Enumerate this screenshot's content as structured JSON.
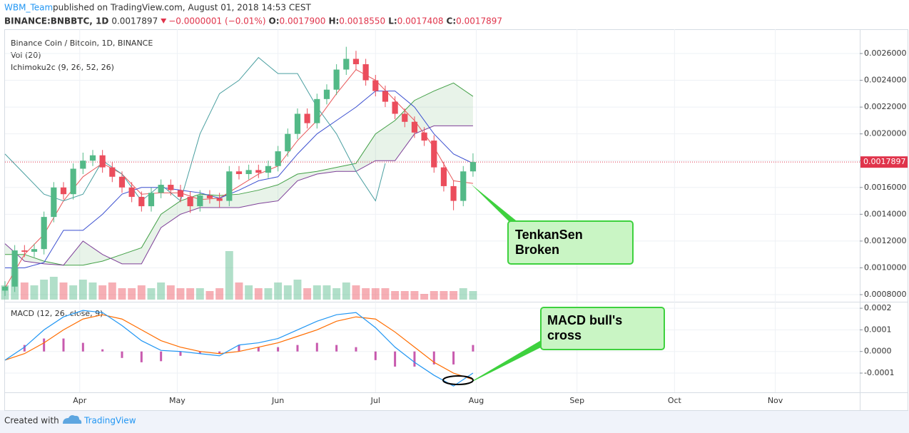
{
  "header": {
    "author": "WBM_Team",
    "published": "published on TradingView.com, August 01, 2018 14:53 CEST",
    "symbol": "BINANCE:BNBBTC, 1D",
    "price": "0.0017897",
    "change": "−0.0000001 (−0.01%)",
    "ohlc": [
      {
        "label": "O:",
        "value": "0.0017900"
      },
      {
        "label": "H:",
        "value": "0.0018550"
      },
      {
        "label": "L:",
        "value": "0.0017408"
      },
      {
        "label": "C:",
        "value": "0.0017897"
      }
    ]
  },
  "footer": {
    "created": "Created with",
    "brand": "TradingView"
  },
  "chart_data": [
    {
      "type": "candlestick",
      "title": "Binance Coin / Bitcoin, 1D, BINANCE",
      "indicators": [
        "Vol (20)",
        "Ichimoku2c (9, 26, 52, 26)"
      ],
      "x": [
        0,
        3,
        6,
        9,
        12,
        15,
        18,
        21,
        24,
        27,
        30,
        33,
        36,
        39,
        42,
        45,
        48,
        51,
        54,
        57,
        60,
        63,
        66,
        69,
        72,
        75,
        78,
        81,
        84,
        87,
        90,
        93,
        96,
        99,
        102,
        105,
        108,
        111,
        114,
        117,
        120,
        123,
        126,
        129,
        132,
        135,
        138,
        141,
        144
      ],
      "open": [
        0.00083,
        0.00086,
        0.00113,
        0.00112,
        0.00114,
        0.00138,
        0.0016,
        0.00155,
        0.00174,
        0.0018,
        0.00184,
        0.00175,
        0.00168,
        0.0016,
        0.00153,
        0.00146,
        0.00156,
        0.00162,
        0.00158,
        0.00153,
        0.00146,
        0.00154,
        0.00152,
        0.0015,
        0.00172,
        0.0017,
        0.00173,
        0.00171,
        0.00176,
        0.00187,
        0.002,
        0.00215,
        0.00208,
        0.00226,
        0.00233,
        0.00248,
        0.00256,
        0.00252,
        0.0024,
        0.00232,
        0.00224,
        0.00215,
        0.00209,
        0.00201,
        0.00195,
        0.00175,
        0.00161,
        0.0015,
        0.00172
      ],
      "high": [
        0.0009,
        0.00117,
        0.00117,
        0.00118,
        0.00142,
        0.00164,
        0.00164,
        0.00178,
        0.00186,
        0.00188,
        0.00188,
        0.00179,
        0.00172,
        0.00164,
        0.00157,
        0.0016,
        0.00166,
        0.00166,
        0.00162,
        0.00157,
        0.00158,
        0.00158,
        0.00156,
        0.00176,
        0.00176,
        0.00177,
        0.00177,
        0.0018,
        0.00191,
        0.00204,
        0.00219,
        0.00219,
        0.0023,
        0.00237,
        0.00252,
        0.00265,
        0.00262,
        0.00256,
        0.00244,
        0.00236,
        0.00228,
        0.00219,
        0.00213,
        0.00205,
        0.00199,
        0.00179,
        0.00165,
        0.00176,
        0.001855
      ],
      "low": [
        0.00079,
        0.00082,
        0.00108,
        0.00108,
        0.0011,
        0.00134,
        0.00151,
        0.00151,
        0.0017,
        0.00176,
        0.00171,
        0.00164,
        0.00156,
        0.00149,
        0.00142,
        0.00142,
        0.00152,
        0.00154,
        0.00149,
        0.00141,
        0.00142,
        0.00148,
        0.00145,
        0.00146,
        0.00166,
        0.00166,
        0.00167,
        0.00167,
        0.00172,
        0.00183,
        0.00196,
        0.00204,
        0.00204,
        0.00222,
        0.00229,
        0.00244,
        0.00248,
        0.00236,
        0.00228,
        0.0022,
        0.00211,
        0.00205,
        0.00197,
        0.00191,
        0.00171,
        0.00157,
        0.00143,
        0.00146,
        0.00168
      ],
      "close": [
        0.00086,
        0.00113,
        0.00112,
        0.00114,
        0.00138,
        0.0016,
        0.00155,
        0.00174,
        0.0018,
        0.00184,
        0.00175,
        0.00168,
        0.0016,
        0.00153,
        0.00146,
        0.00156,
        0.00162,
        0.00158,
        0.00153,
        0.00146,
        0.00154,
        0.00152,
        0.0015,
        0.00172,
        0.0017,
        0.00173,
        0.00171,
        0.00176,
        0.00187,
        0.002,
        0.00215,
        0.00208,
        0.00226,
        0.00233,
        0.00248,
        0.00256,
        0.00252,
        0.0024,
        0.00232,
        0.00224,
        0.00215,
        0.00209,
        0.00201,
        0.00195,
        0.00175,
        0.00161,
        0.0015,
        0.00172,
        0.0017897
      ],
      "up_color": "#53b987",
      "down_color": "#eb4d5c",
      "volume": [
        25,
        55,
        30,
        25,
        35,
        40,
        30,
        25,
        35,
        30,
        25,
        30,
        20,
        20,
        25,
        20,
        30,
        25,
        20,
        20,
        20,
        15,
        20,
        85,
        30,
        25,
        20,
        20,
        30,
        25,
        35,
        20,
        25,
        25,
        20,
        30,
        25,
        20,
        20,
        20,
        15,
        15,
        15,
        10,
        15,
        15,
        15,
        20,
        15
      ],
      "lines": [
        {
          "color": "#e8585a",
          "x": [
            0,
            6,
            12,
            18,
            24,
            30,
            36,
            42,
            48,
            54,
            60,
            66,
            72,
            78,
            84,
            90,
            96,
            102,
            108,
            114,
            120,
            126,
            132,
            138,
            144
          ],
          "values": [
            0.00085,
            0.0011,
            0.00125,
            0.0015,
            0.00168,
            0.00178,
            0.0017,
            0.00155,
            0.00156,
            0.00156,
            0.00151,
            0.00152,
            0.00161,
            0.0017,
            0.00176,
            0.00195,
            0.0021,
            0.0023,
            0.00248,
            0.0024,
            0.00225,
            0.0021,
            0.0019,
            0.00165,
            0.00163
          ]
        },
        {
          "color": "#3b4fd0",
          "x": [
            0,
            6,
            12,
            18,
            24,
            30,
            36,
            42,
            48,
            54,
            60,
            66,
            72,
            78,
            84,
            90,
            96,
            102,
            108,
            114,
            120,
            126,
            132,
            138,
            144
          ],
          "values": [
            0.001,
            0.001,
            0.00104,
            0.00128,
            0.00128,
            0.0014,
            0.00155,
            0.0016,
            0.0016,
            0.00158,
            0.00156,
            0.00152,
            0.00158,
            0.00165,
            0.00168,
            0.00185,
            0.002,
            0.0021,
            0.0022,
            0.00232,
            0.00232,
            0.0022,
            0.002,
            0.00185,
            0.00178
          ]
        },
        {
          "color": "#4a9fa0",
          "x": [
            0,
            6,
            12,
            18,
            24,
            30,
            36,
            42,
            48,
            54,
            60,
            66,
            72,
            78,
            84,
            90,
            96,
            102,
            108,
            114,
            117
          ],
          "values": [
            0.00185,
            0.0017,
            0.00155,
            0.0015,
            0.00155,
            0.0018,
            0.0017,
            0.0015,
            0.00162,
            0.0015,
            0.002,
            0.0023,
            0.0024,
            0.00257,
            0.00245,
            0.00245,
            0.0022,
            0.002,
            0.00172,
            0.0015,
            0.00178
          ]
        }
      ],
      "cloud": {
        "x": [
          0,
          6,
          12,
          18,
          24,
          30,
          36,
          42,
          48,
          54,
          60,
          66,
          72,
          78,
          84,
          90,
          96,
          102,
          108,
          114,
          120,
          126,
          132,
          138,
          144
        ],
        "span_a": [
          0.0011,
          0.0011,
          0.00105,
          0.00102,
          0.00102,
          0.00105,
          0.0011,
          0.00115,
          0.0014,
          0.0015,
          0.00155,
          0.00154,
          0.00155,
          0.00158,
          0.00162,
          0.0017,
          0.00172,
          0.00175,
          0.00178,
          0.002,
          0.0021,
          0.00225,
          0.00232,
          0.00238,
          0.00228
        ],
        "span_b": [
          0.00118,
          0.00105,
          0.00103,
          0.00102,
          0.0012,
          0.0011,
          0.00103,
          0.00103,
          0.0013,
          0.0014,
          0.00145,
          0.00145,
          0.00145,
          0.00148,
          0.0015,
          0.00165,
          0.0017,
          0.00172,
          0.00172,
          0.0018,
          0.0018,
          0.002,
          0.00206,
          0.00206,
          0.00206
        ],
        "color_a": "#43a047",
        "color_b": "#7e3f98",
        "fill": "#43a047"
      },
      "last_price": 0.0017897,
      "last_color": "#e0344b",
      "xlim": [
        0,
        263
      ],
      "ylim": [
        0.000747,
        0.002781
      ],
      "xticks": [
        {
          "value": 23,
          "label": "Apr"
        },
        {
          "value": 53,
          "label": "May"
        },
        {
          "value": 84,
          "label": "Jun"
        },
        {
          "value": 114,
          "label": "Jul"
        },
        {
          "value": 145,
          "label": "Aug"
        },
        {
          "value": 176,
          "label": "Sep"
        },
        {
          "value": 206,
          "label": "Oct"
        },
        {
          "value": 237,
          "label": "Nov"
        }
      ],
      "yticks": [
        {
          "value": 0.0008,
          "label": "0.0008000"
        },
        {
          "value": 0.001,
          "label": "0.0010000"
        },
        {
          "value": 0.0012,
          "label": "0.0012000"
        },
        {
          "value": 0.0014,
          "label": "0.0014000"
        },
        {
          "value": 0.0016,
          "label": "0.0016000"
        },
        {
          "value": 0.0018,
          "label": "0.0018000"
        },
        {
          "value": 0.002,
          "label": "0.0020000"
        },
        {
          "value": 0.0022,
          "label": "0.0022000"
        },
        {
          "value": 0.0024,
          "label": "0.0024000"
        },
        {
          "value": 0.0026,
          "label": "0.0026000"
        }
      ],
      "grid": true,
      "annotations": [
        [
          "TenkanSen",
          "Broken"
        ],
        [
          "MACD bull's",
          "cross"
        ]
      ]
    },
    {
      "type": "macd",
      "title": "MACD (12, 26, close, 9)",
      "x": [
        0,
        6,
        12,
        18,
        24,
        30,
        36,
        42,
        48,
        54,
        60,
        66,
        72,
        78,
        84,
        90,
        96,
        102,
        108,
        114,
        120,
        126,
        132,
        138,
        144
      ],
      "macd": {
        "color": "#2196f3",
        "values": [
          -4e-05,
          2e-05,
          0.0001,
          0.00016,
          0.00019,
          0.00018,
          0.00012,
          5e-05,
          5e-06,
          0,
          -1e-05,
          -2e-05,
          3e-05,
          4e-05,
          6e-05,
          0.0001,
          0.00014,
          0.00017,
          0.00018,
          0.00011,
          2e-05,
          -5e-05,
          -0.00011,
          -0.00016,
          -0.0001
        ]
      },
      "signal": {
        "color": "#ff6d00",
        "values": [
          -4e-05,
          -1e-05,
          4e-05,
          0.0001,
          0.00015,
          0.00017,
          0.00015,
          0.0001,
          5e-05,
          2e-05,
          0,
          -1e-05,
          0,
          2e-05,
          4e-05,
          7e-05,
          0.0001,
          0.00014,
          0.00016,
          0.00015,
          9e-05,
          2e-05,
          -5e-05,
          -0.0001,
          -0.00013
        ]
      },
      "histogram": {
        "color": "#b0148c",
        "values": [
          0,
          3e-05,
          6e-05,
          6e-05,
          4e-05,
          1e-05,
          -3e-05,
          -5e-05,
          -4.5e-05,
          -2e-05,
          -1e-05,
          -1e-05,
          3e-05,
          2e-05,
          2e-05,
          3e-05,
          4e-05,
          3e-05,
          2e-05,
          -4e-05,
          -7e-05,
          -7e-05,
          -6e-05,
          -6e-05,
          3e-05
        ]
      },
      "ylim": [
        -0.000189,
        0.00023
      ],
      "yticks": [
        -0.0001,
        {
          "value": 0,
          "label": "0.0000"
        },
        0.0001,
        0.0002
      ]
    }
  ]
}
